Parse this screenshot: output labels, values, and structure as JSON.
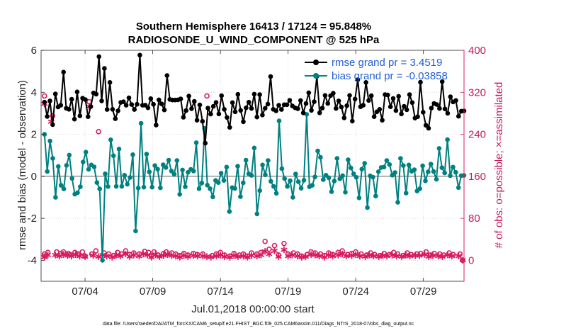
{
  "chart_data": {
    "type": "line",
    "title_line1": "Southern Hemisphere 16413 / 17124 = 95.848%",
    "title_line2": "RADIOSONDE_U_WIND_COMPONENT @ 525 hPa",
    "xlabel": "Jul.01,2018 00:00:00 start",
    "ylabel": "rmse and bias (model - observation)",
    "y2label": "# of obs: o=possible; ×=assimilated",
    "footer": "data file: /Users/raeder/DAI/ATM_forcXX/CAM6_setup/f.e21.FHIST_BGC.f09_025.CAM6assim.011/Diags_NTrS_2018-07/obs_diag_output.nc",
    "xlim": [
      0.75,
      32
    ],
    "ylim": [
      -5,
      6
    ],
    "y2lim": [
      -40,
      400
    ],
    "x_ticks": [
      4,
      9,
      14,
      19,
      24,
      29
    ],
    "x_tick_labels": [
      "07/04",
      "07/09",
      "07/14",
      "07/19",
      "07/24",
      "07/29"
    ],
    "y_ticks": [
      -4,
      -2,
      0,
      2,
      4,
      6
    ],
    "y_tick_labels": [
      "-4",
      "-2",
      "0",
      "2",
      "4",
      "6"
    ],
    "y2_ticks": [
      0,
      80,
      160,
      240,
      320,
      400
    ],
    "y2_tick_labels": [
      "0",
      "80",
      "160",
      "240",
      "320",
      "400"
    ],
    "legend_location": "top-right",
    "colors": {
      "rmse": "#000000",
      "bias": "#008080",
      "obs": "#d81b60",
      "zero_line": "#b0b0b0",
      "legend_text": "#1f5fd6"
    },
    "series": [
      {
        "name": "rmse grand pr = 3.4519",
        "axis": "left",
        "style": "line-dot",
        "color": "#000000",
        "values": [
          3.53,
          2.85,
          3.59,
          2.46,
          3.92,
          3.3,
          3.38,
          4.96,
          3.24,
          3.19,
          3.67,
          2.72,
          4.02,
          2.88,
          3.72,
          3.65,
          2.84,
          3.32,
          3.97,
          3.91,
          5.7,
          3.59,
          5.14,
          3.18,
          4.47,
          3.19,
          2.74,
          3.12,
          3.52,
          3.55,
          3.38,
          3.74,
          3.42,
          3.18,
          3.43,
          5.77,
          3.38,
          3.39,
          3.26,
          3.7,
          3.43,
          2.44,
          3.64,
          3.45,
          3.16,
          4.8,
          3.66,
          3.63,
          3.63,
          3.64,
          3.69,
          2.81,
          3.13,
          3.82,
          3.22,
          3.57,
          2.67,
          3.4,
          2.62,
          1.58,
          3.25,
          2.96,
          3.33,
          3.52,
          2.97,
          3.84,
          3.19,
          2.8,
          2.33,
          3.51,
          3.07,
          3.9,
          3.14,
          2.6,
          3.26,
          3.53,
          3.23,
          3.91,
          2.82,
          3.89,
          2.92,
          3.24,
          3.44,
          4.75,
          3.19,
          3.12,
          3.38,
          3.18,
          3.41,
          3.41,
          3.62,
          3.35,
          3.26,
          3.22,
          3.61,
          3.02,
          3.47,
          3.98,
          3.14,
          3.55,
          4.76,
          3.02,
          3.25,
          3.85,
          3.47,
          3.84,
          3.96,
          3.23,
          3.59,
          3.3,
          2.78,
          3.36,
          3.85,
          2.63,
          3.68,
          4.6,
          3.31,
          3.38,
          4.47,
          3.61,
          3.84,
          2.84,
          3.07,
          3.19,
          2.67,
          3.89,
          3.87,
          3.31,
          3.71,
          3.13,
          3.81,
          2.97,
          3.33,
          3.17,
          3.89,
          3.51,
          2.77,
          2.84,
          4.48,
          3.05,
          2.43,
          2.29,
          3.25,
          3.47,
          3.42,
          3.23,
          4.51,
          3.21,
          3.0,
          3.79,
          3.54,
          3.61,
          2.86,
          3.1,
          3.11
        ]
      },
      {
        "name": "bias grand pr = -0.03858",
        "axis": "left",
        "style": "line-dot",
        "color": "#008080",
        "values": [
          2.0,
          0.23,
          1.68,
          0.85,
          -1.0,
          0.47,
          -0.43,
          -0.6,
          0.52,
          1.01,
          -0.1,
          -0.85,
          -0.78,
          -0.5,
          0.68,
          1.15,
          0.33,
          0.54,
          0.45,
          -0.3,
          -0.6,
          -4.0,
          0.12,
          -0.49,
          1.74,
          0.98,
          -0.48,
          1.3,
          -0.48,
          0.05,
          -0.38,
          -0.06,
          1.03,
          -2.6,
          -0.56,
          2.52,
          -0.52,
          1.06,
          0.21,
          -0.52,
          0.51,
          0.34,
          -0.55,
          0.55,
          0.42,
          0.77,
          0.25,
          0.1,
          0.75,
          -0.86,
          0.3,
          -0.5,
          0.19,
          0.33,
          0.25,
          1.6,
          -0.59,
          -0.32,
          2.28,
          -0.42,
          -0.59,
          -0.98,
          -0.2,
          -0.3,
          0.15,
          -0.2,
          0.44,
          -1.68,
          -0.54,
          -0.58,
          0.48,
          -0.97,
          -0.31,
          0.77,
          0.12,
          0.04,
          1.35,
          -1.79,
          -0.68,
          0.54,
          0.07,
          0.75,
          -0.24,
          -0.48,
          -0.81,
          2.64,
          0.36,
          -0.11,
          -0.48,
          -0.21,
          -1.0,
          0.11,
          -0.26,
          -0.57,
          -0.19,
          2.95,
          -0.5,
          -0.43,
          -0.03,
          1.21,
          0.9,
          -0.16,
          0.05,
          -0.07,
          -0.73,
          -0.23,
          0.85,
          -0.12,
          0.03,
          -0.76,
          0.79,
          0.4,
          0.12,
          -0.05,
          -1.03,
          0.34,
          0.62,
          -1.49,
          0.02,
          -0.04,
          -0.94,
          0.22,
          0.42,
          0.44,
          0.75,
          0.56,
          0.05,
          0.18,
          -1.24,
          0.85,
          0.51,
          -0.8,
          0.54,
          0.24,
          0.31,
          -0.7,
          -0.59,
          0.5,
          -0.22,
          0.21,
          0.58,
          0.23,
          -0.14,
          1.33,
          0.41,
          0.16,
          1.75,
          0.03,
          0.44,
          0.19,
          -0.54,
          0.03,
          0.04
        ]
      },
      {
        "name": "possible",
        "axis": "right",
        "style": "circle",
        "color": "#d81b60",
        "points": [
          [
            1.0,
            8
          ],
          [
            1.0,
            12
          ],
          [
            1.0,
            313
          ],
          [
            1.25,
            15
          ],
          [
            1.6,
            275
          ],
          [
            1.9,
            16
          ],
          [
            2.2,
            13
          ],
          [
            2.4,
            16
          ],
          [
            2.75,
            13
          ],
          [
            2.9,
            11
          ],
          [
            3.25,
            15
          ],
          [
            3.5,
            12
          ],
          [
            3.8,
            16
          ],
          [
            4.0,
            8
          ],
          [
            4.3,
            302
          ],
          [
            4.5,
            12
          ],
          [
            4.8,
            18
          ],
          [
            5.0,
            245
          ],
          [
            5.4,
            14
          ],
          [
            5.75,
            12
          ],
          [
            6.1,
            9
          ],
          [
            6.4,
            15
          ],
          [
            6.7,
            12
          ],
          [
            7.0,
            18
          ],
          [
            7.3,
            11
          ],
          [
            7.6,
            14
          ],
          [
            8.0,
            12
          ],
          [
            8.4,
            17
          ],
          [
            8.7,
            15
          ],
          [
            8.9,
            8
          ],
          [
            9.1,
            16
          ],
          [
            9.4,
            10
          ],
          [
            9.8,
            13
          ],
          [
            10.0,
            16
          ],
          [
            10.4,
            14
          ],
          [
            10.7,
            12
          ],
          [
            11.0,
            9
          ],
          [
            11.3,
            13
          ],
          [
            11.6,
            10
          ],
          [
            12.0,
            13
          ],
          [
            12.3,
            11
          ],
          [
            12.7,
            12
          ],
          [
            13.0,
            313
          ],
          [
            13.4,
            9
          ],
          [
            13.7,
            12
          ],
          [
            14.0,
            15
          ],
          [
            14.3,
            10
          ],
          [
            14.7,
            8
          ],
          [
            15.0,
            13
          ],
          [
            15.4,
            10
          ],
          [
            15.7,
            12
          ],
          [
            16.0,
            8
          ],
          [
            16.3,
            14
          ],
          [
            16.7,
            12
          ],
          [
            17.0,
            15
          ],
          [
            17.3,
            36
          ],
          [
            17.6,
            21
          ],
          [
            18.0,
            28
          ],
          [
            18.3,
            10
          ],
          [
            18.7,
            32
          ],
          [
            19.0,
            12
          ],
          [
            19.4,
            14
          ],
          [
            19.7,
            12
          ],
          [
            20.0,
            8
          ],
          [
            20.4,
            11
          ],
          [
            20.7,
            16
          ],
          [
            21.0,
            14
          ],
          [
            21.4,
            12
          ],
          [
            21.7,
            9
          ],
          [
            22.0,
            14
          ],
          [
            22.3,
            11
          ],
          [
            22.7,
            15
          ],
          [
            23.0,
            18
          ],
          [
            23.4,
            11
          ],
          [
            23.7,
            13
          ],
          [
            24.0,
            16
          ],
          [
            24.4,
            12
          ],
          [
            24.8,
            10
          ],
          [
            25.1,
            14
          ],
          [
            25.4,
            11
          ],
          [
            25.8,
            9
          ],
          [
            26.1,
            13
          ],
          [
            26.5,
            11
          ],
          [
            26.8,
            15
          ],
          [
            27.1,
            12
          ],
          [
            27.5,
            9
          ],
          [
            27.8,
            14
          ],
          [
            28.1,
            11
          ],
          [
            28.5,
            12
          ],
          [
            28.8,
            13
          ],
          [
            29.2,
            16
          ],
          [
            29.5,
            10
          ],
          [
            29.8,
            13
          ],
          [
            30.2,
            12
          ],
          [
            30.5,
            10
          ],
          [
            30.9,
            14
          ],
          [
            31.2,
            11
          ],
          [
            31.7,
            12
          ],
          [
            31.9,
            0
          ]
        ]
      },
      {
        "name": "assimilated",
        "axis": "right",
        "style": "asterisk",
        "color": "#d81b60",
        "points": [
          [
            1.0,
            6
          ],
          [
            1.0,
            298
          ],
          [
            1.25,
            10
          ],
          [
            1.5,
            264
          ],
          [
            1.8,
            10
          ],
          [
            2.1,
            8
          ],
          [
            2.4,
            11
          ],
          [
            2.7,
            9
          ],
          [
            3.0,
            8
          ],
          [
            3.3,
            11
          ],
          [
            3.6,
            8
          ],
          [
            4.0,
            7
          ],
          [
            4.3,
            293
          ],
          [
            4.6,
            9
          ],
          [
            5.0,
            7
          ],
          [
            5.3,
            10
          ],
          [
            5.6,
            8
          ],
          [
            6.0,
            6
          ],
          [
            6.3,
            10
          ],
          [
            6.6,
            8
          ],
          [
            7.0,
            12
          ],
          [
            7.3,
            7
          ],
          [
            7.6,
            10
          ],
          [
            8.0,
            8
          ],
          [
            8.3,
            12
          ],
          [
            8.6,
            10
          ],
          [
            8.9,
            6
          ],
          [
            9.2,
            11
          ],
          [
            9.5,
            7
          ],
          [
            9.8,
            9
          ],
          [
            10.1,
            11
          ],
          [
            10.4,
            9
          ],
          [
            10.7,
            8
          ],
          [
            11.0,
            6
          ],
          [
            11.3,
            9
          ],
          [
            11.6,
            7
          ],
          [
            12.0,
            9
          ],
          [
            12.3,
            8
          ],
          [
            12.7,
            8
          ],
          [
            13.0,
            7
          ],
          [
            13.3,
            6
          ],
          [
            13.7,
            8
          ],
          [
            14.0,
            10
          ],
          [
            14.3,
            7
          ],
          [
            14.7,
            6
          ],
          [
            15.0,
            9
          ],
          [
            15.3,
            7
          ],
          [
            15.7,
            8
          ],
          [
            16.0,
            6
          ],
          [
            16.3,
            9
          ],
          [
            16.7,
            8
          ],
          [
            17.0,
            10
          ],
          [
            17.3,
            17
          ],
          [
            17.6,
            12
          ],
          [
            18.0,
            18
          ],
          [
            18.3,
            7
          ],
          [
            18.7,
            20
          ],
          [
            19.0,
            8
          ],
          [
            19.3,
            10
          ],
          [
            19.7,
            8
          ],
          [
            20.0,
            6
          ],
          [
            20.3,
            7
          ],
          [
            20.7,
            11
          ],
          [
            21.0,
            10
          ],
          [
            21.3,
            8
          ],
          [
            21.7,
            6
          ],
          [
            22.0,
            10
          ],
          [
            22.3,
            8
          ],
          [
            22.7,
            10
          ],
          [
            23.0,
            12
          ],
          [
            23.3,
            8
          ],
          [
            23.7,
            9
          ],
          [
            24.0,
            11
          ],
          [
            24.3,
            8
          ],
          [
            24.7,
            7
          ],
          [
            25.0,
            10
          ],
          [
            25.3,
            8
          ],
          [
            25.7,
            7
          ],
          [
            26.0,
            9
          ],
          [
            26.3,
            8
          ],
          [
            26.7,
            10
          ],
          [
            27.0,
            8
          ],
          [
            27.4,
            7
          ],
          [
            27.7,
            10
          ],
          [
            28.0,
            8
          ],
          [
            28.4,
            9
          ],
          [
            28.7,
            9
          ],
          [
            29.1,
            11
          ],
          [
            29.4,
            7
          ],
          [
            29.7,
            9
          ],
          [
            30.1,
            8
          ],
          [
            30.4,
            7
          ],
          [
            30.8,
            10
          ],
          [
            31.1,
            8
          ],
          [
            31.6,
            8
          ],
          [
            31.9,
            0
          ]
        ]
      }
    ]
  }
}
